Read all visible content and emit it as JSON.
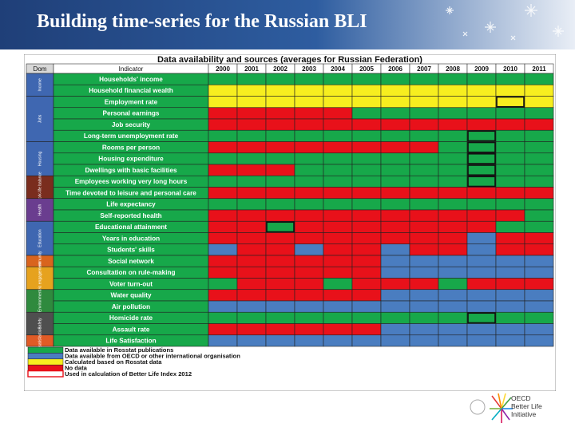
{
  "slide": {
    "title": "Building time-series for the Russian BLI"
  },
  "table": {
    "title": "Data availability and sources (averages for Russian Federation)",
    "dom_header": "Dom",
    "indicator_header": "Indicator",
    "years": [
      "2000",
      "2001",
      "2002",
      "2003",
      "2004",
      "2005",
      "2006",
      "2007",
      "2008",
      "2009",
      "2010",
      "2011"
    ],
    "colors": {
      "R": "#e8111a",
      "G": "#17a84a",
      "Y": "#f7ee1f",
      "B": "#4a7dc0",
      "Rd": "#e8111a"
    },
    "domains": [
      {
        "label": "Income",
        "color": "#3f67b1",
        "span": 2
      },
      {
        "label": "Jobs",
        "color": "#3f67b1",
        "span": 4
      },
      {
        "label": "Housing",
        "color": "#3f67b1",
        "span": 3
      },
      {
        "label": "Work-life balance",
        "color": "#7a2d1e",
        "span": 2
      },
      {
        "label": "Health",
        "color": "#6a3d8f",
        "span": 2
      },
      {
        "label": "Education",
        "color": "#3f67b1",
        "span": 3
      },
      {
        "label": "Community",
        "color": "#d9641e",
        "span": 1
      },
      {
        "label": "Civic engagement",
        "color": "#e6a21e",
        "span": 2
      },
      {
        "label": "Environment",
        "color": "#2f8a3e",
        "span": 2
      },
      {
        "label": "Safety",
        "color": "#4f4f4f",
        "span": 2
      },
      {
        "label": "Life satisfaction",
        "color": "#e05b26",
        "span": 1
      }
    ],
    "rows": [
      {
        "indicator": "Households' income",
        "cells": "GGGGGGGGGGGG",
        "highlight": ""
      },
      {
        "indicator": "Household financial wealth",
        "cells": "YYYYYYYYYYYY",
        "highlight": ""
      },
      {
        "indicator": "Employment rate",
        "cells": "YYYYYYYYYYYY",
        "highlight": "10"
      },
      {
        "indicator": "Personal earnings",
        "cells": "RRRRRGGGGGGG",
        "highlight": ""
      },
      {
        "indicator": "Job security",
        "cells": "RRRRRRRRRRRR",
        "highlight": ""
      },
      {
        "indicator": "Long-term unemployment rate",
        "cells": "GGGGGGGGGGGG",
        "highlight": "9"
      },
      {
        "indicator": "Rooms per person",
        "cells": "RRRRRRRRGGGG",
        "highlight": "9"
      },
      {
        "indicator": "Housing expenditure",
        "cells": "GGGGGGGGGGGG",
        "highlight": "9"
      },
      {
        "indicator": "Dwellings with basic facilities",
        "cells": "RRRGGGGGGGGG",
        "highlight": "9"
      },
      {
        "indicator": "Employees working very long hours",
        "cells": "GGGGGGGGGGGG",
        "highlight": "9"
      },
      {
        "indicator": "Time devoted to leisure and personal care",
        "cells": "RRRRRRRRRRRR",
        "highlight": ""
      },
      {
        "indicator": "Life expectancy",
        "cells": "GGGGGGGGGGGG",
        "highlight": ""
      },
      {
        "indicator": "Self-reported health",
        "cells": "RRRRRRRRRRRG",
        "highlight": ""
      },
      {
        "indicator": "Educational attainment",
        "cells": "RRGRRRRRRRGG",
        "highlight": "2"
      },
      {
        "indicator": "Years in education",
        "cells": "RRRRRRRRRBRR",
        "highlight": ""
      },
      {
        "indicator": "Students' skills",
        "cells": "BRRBRRBRRBRR",
        "highlight": ""
      },
      {
        "indicator": "Social network",
        "cells": "RRRRRRBBBBBB",
        "highlight": ""
      },
      {
        "indicator": "Consultation on rule-making",
        "cells": "RRRRRRBBBBBB",
        "highlight": ""
      },
      {
        "indicator": "Voter turn-out",
        "cells": "GRRRGRRRGRRR",
        "highlight": ""
      },
      {
        "indicator": "Water quality",
        "cells": "RRRRRRBBBBBB",
        "highlight": ""
      },
      {
        "indicator": "Air pollution",
        "cells": "BBBBBBBBBBBB",
        "highlight": ""
      },
      {
        "indicator": "Homicide rate",
        "cells": "GGGGGGGGGGGG",
        "highlight": "9"
      },
      {
        "indicator": "Assault rate",
        "cells": "RRRRRRBBBBBB",
        "highlight": ""
      },
      {
        "indicator": "Life Satisfaction",
        "cells": "BBBBBBBBBBBB",
        "highlight": ""
      }
    ],
    "legend": [
      {
        "key": "G",
        "label": "Data available in Rosstat publications"
      },
      {
        "key": "B",
        "label": "Data available from OECD or other international organisation"
      },
      {
        "key": "Y",
        "label": "Calculated based on Rosstat data"
      },
      {
        "key": "R",
        "label": "No data"
      },
      {
        "key": "Rd",
        "label": "Used in calculation of Better Life Index 2012"
      }
    ]
  },
  "logo": {
    "lines": [
      "OECD",
      "Better Life",
      "Initiative"
    ]
  }
}
